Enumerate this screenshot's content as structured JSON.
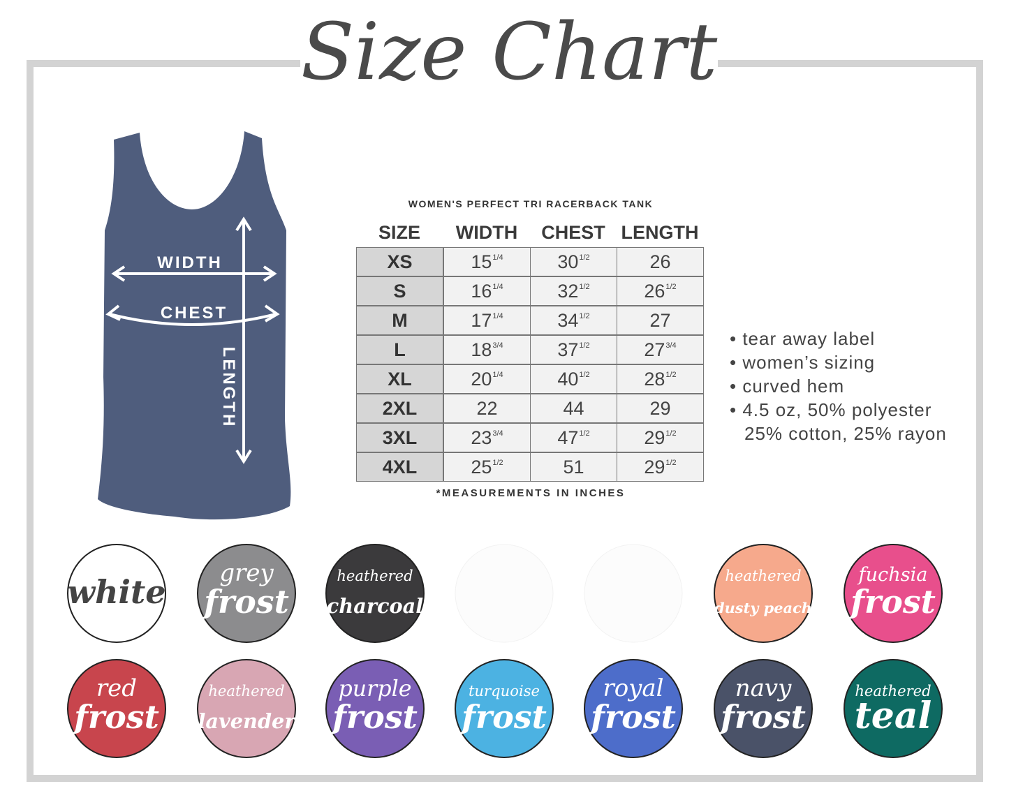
{
  "title": "Size Chart",
  "subtitle": "WOMEN'S PERFECT TRI RACERBACK TANK",
  "diagram": {
    "width": "WIDTH",
    "chest": "CHEST",
    "length": "LENGTH"
  },
  "table": {
    "header": [
      "SIZE",
      "WIDTH",
      "CHEST",
      "LENGTH"
    ],
    "rows": [
      [
        {
          "n": "XS"
        },
        {
          "n": "15",
          "sup": "1/4"
        },
        {
          "n": "30",
          "sup": "1/2"
        },
        {
          "n": "26"
        }
      ],
      [
        {
          "n": "S"
        },
        {
          "n": "16",
          "sup": "1/4"
        },
        {
          "n": "32",
          "sup": "1/2"
        },
        {
          "n": "26",
          "sup": "1/2"
        }
      ],
      [
        {
          "n": "M"
        },
        {
          "n": "17",
          "sup": "1/4"
        },
        {
          "n": "34",
          "sup": "1/2"
        },
        {
          "n": "27"
        }
      ],
      [
        {
          "n": "L"
        },
        {
          "n": "18",
          "sup": "3/4"
        },
        {
          "n": "37",
          "sup": "1/2"
        },
        {
          "n": "27",
          "sup": "3/4"
        }
      ],
      [
        {
          "n": "XL"
        },
        {
          "n": "20",
          "sup": "1/4"
        },
        {
          "n": "40",
          "sup": "1/2"
        },
        {
          "n": "28",
          "sup": "1/2"
        }
      ],
      [
        {
          "n": "2XL"
        },
        {
          "n": "22"
        },
        {
          "n": "44"
        },
        {
          "n": "29"
        }
      ],
      [
        {
          "n": "3XL"
        },
        {
          "n": "23",
          "sup": "3/4"
        },
        {
          "n": "47",
          "sup": "1/2"
        },
        {
          "n": "29",
          "sup": "1/2"
        }
      ],
      [
        {
          "n": "4XL"
        },
        {
          "n": "25",
          "sup": "1/2"
        },
        {
          "n": "51"
        },
        {
          "n": "29",
          "sup": "1/2"
        }
      ]
    ],
    "note": "*MEASUREMENTS IN INCHES"
  },
  "features": [
    "• tear away label",
    "• women’s sizing",
    "• curved hem",
    "• 4.5 oz, 50% polyester",
    "25% cotton, 25% rayon"
  ],
  "swatches": [
    {
      "lines": [
        "white"
      ],
      "color": "#ffffff",
      "text": "#444444"
    },
    {
      "lines": [
        "grey",
        "frost"
      ],
      "color": "#8c8c8e",
      "text": "#ffffff"
    },
    {
      "lines": [
        "heathered",
        "charcoal"
      ],
      "color": "#3b3a3c",
      "text": "#ffffff"
    },
    {
      "lines": [
        "heathered",
        "dusty peach"
      ],
      "color": "#f6a98c",
      "text": "#ffffff"
    },
    {
      "lines": [
        "fuchsia",
        "frost"
      ],
      "color": "#e84f8c",
      "text": "#ffffff"
    },
    {
      "lines": [
        "red",
        "frost"
      ],
      "color": "#c8454d",
      "text": "#ffffff"
    },
    {
      "lines": [
        "heathered",
        "lavender"
      ],
      "color": "#d8a6b3",
      "text": "#ffffff"
    },
    {
      "lines": [
        "purple",
        "frost"
      ],
      "color": "#7a5eb4",
      "text": "#ffffff"
    },
    {
      "lines": [
        "turquoise",
        "frost"
      ],
      "color": "#4cb2e2",
      "text": "#ffffff"
    },
    {
      "lines": [
        "royal",
        "frost"
      ],
      "color": "#4d6dca",
      "text": "#ffffff"
    },
    {
      "lines": [
        "navy",
        "frost"
      ],
      "color": "#4a5268",
      "text": "#ffffff"
    },
    {
      "lines": [
        "heathered",
        "teal"
      ],
      "color": "#0e6a62",
      "text": "#ffffff"
    }
  ]
}
